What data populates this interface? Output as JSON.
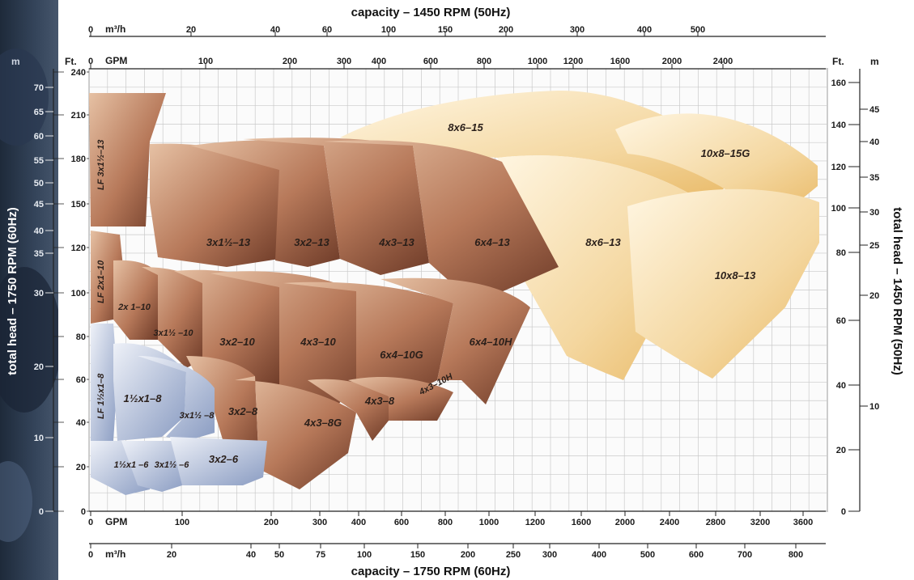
{
  "chart_data": {
    "type": "area",
    "title_top": "capacity – 1450 RPM (50Hz)",
    "title_bottom": "capacity – 1750 RPM (60Hz)",
    "ylabel_left": "total head – 1750 RPM (60Hz)",
    "ylabel_right": "total head – 1450 RPM (50Hz)",
    "top_axis": {
      "m3h_unit": "m³/h",
      "m3h_ticks": [
        "0",
        "20",
        "40",
        "60",
        "100",
        "150",
        "200",
        "300",
        "400",
        "500"
      ],
      "gpm_unit": "GPM",
      "gpm_ticks": [
        "0",
        "100",
        "200",
        "300",
        "400",
        "600",
        "800",
        "1000",
        "1200",
        "1600",
        "2000",
        "2400"
      ]
    },
    "bottom_axis": {
      "gpm_unit": "GPM",
      "gpm_ticks": [
        "0",
        "100",
        "200",
        "300",
        "400",
        "600",
        "800",
        "1000",
        "1200",
        "1600",
        "2000",
        "2400",
        "2800",
        "3200",
        "3600"
      ],
      "m3h_unit": "m³/h",
      "m3h_ticks": [
        "0",
        "20",
        "40",
        "50",
        "75",
        "100",
        "150",
        "200",
        "250",
        "300",
        "400",
        "500",
        "600",
        "700",
        "800"
      ]
    },
    "left_axis": {
      "m_unit": "m",
      "ft_unit": "Ft.",
      "m_ticks": [
        "70",
        "65",
        "60",
        "55",
        "50",
        "45",
        "40",
        "35",
        "30",
        "20",
        "10",
        "0"
      ],
      "ft_ticks": [
        "240",
        "210",
        "180",
        "150",
        "120",
        "100",
        "80",
        "60",
        "40",
        "20",
        "0"
      ]
    },
    "right_axis": {
      "ft_unit": "Ft.",
      "m_unit": "m",
      "ft_ticks": [
        "160",
        "140",
        "120",
        "100",
        "80",
        "60",
        "40",
        "20",
        "0"
      ],
      "m_ticks": [
        "45",
        "40",
        "35",
        "30",
        "25",
        "20",
        "10"
      ]
    },
    "pump_families": [
      {
        "group": "small",
        "color": "#a9b8d6"
      },
      {
        "group": "medium",
        "color": "#a0624a"
      },
      {
        "group": "large",
        "color": "#f0c878"
      }
    ],
    "pumps": [
      {
        "model": "LF 3x1½–13",
        "group": "medium"
      },
      {
        "model": "3x1½–13",
        "group": "medium"
      },
      {
        "model": "3x2–13",
        "group": "medium"
      },
      {
        "model": "4x3–13",
        "group": "medium"
      },
      {
        "model": "6x4–13",
        "group": "medium"
      },
      {
        "model": "8x6–15",
        "group": "large"
      },
      {
        "model": "10x8–15G",
        "group": "large"
      },
      {
        "model": "8x6–13",
        "group": "large"
      },
      {
        "model": "10x8–13",
        "group": "large"
      },
      {
        "model": "LF 2x1–10",
        "group": "medium"
      },
      {
        "model": "2x 1–10",
        "group": "medium"
      },
      {
        "model": "3x1½ –10",
        "group": "medium"
      },
      {
        "model": "3x2–10",
        "group": "medium"
      },
      {
        "model": "4x3–10",
        "group": "medium"
      },
      {
        "model": "6x4–10G",
        "group": "medium"
      },
      {
        "model": "6x4–10H",
        "group": "medium"
      },
      {
        "model": "LF 1½x1–8",
        "group": "small"
      },
      {
        "model": "1½x1–8",
        "group": "small"
      },
      {
        "model": "3x1½ –8",
        "group": "small"
      },
      {
        "model": "3x2–8",
        "group": "medium"
      },
      {
        "model": "4x3–8G",
        "group": "medium"
      },
      {
        "model": "4x3–8",
        "group": "medium"
      },
      {
        "model": "4x3–10H",
        "group": "medium"
      },
      {
        "model": "1½x1 –6",
        "group": "small"
      },
      {
        "model": "3x1½ –6",
        "group": "small"
      },
      {
        "model": "3x2–6",
        "group": "small"
      }
    ],
    "grid": true
  }
}
